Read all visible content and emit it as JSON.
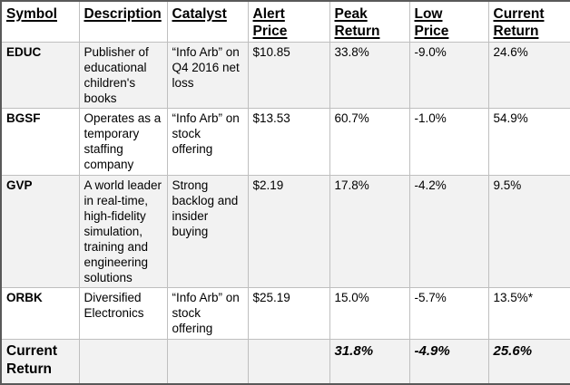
{
  "table": {
    "header": {
      "symbol": "Symbol",
      "description": "Description",
      "catalyst": "Catalyst",
      "alert_price": "Alert\nPrice",
      "peak_return": "Peak\nReturn",
      "low_price": "Low\nPrice",
      "current_return": "Current\nReturn"
    },
    "rows": [
      {
        "symbol": "EDUC",
        "description": "Publisher of educational children's books",
        "catalyst": "“Info Arb” on Q4 2016 net loss",
        "alert_price": "$10.85",
        "peak_return": "33.8%",
        "low_price": "-9.0%",
        "current_return": "24.6%"
      },
      {
        "symbol": "BGSF",
        "description": "Operates as a temporary staffing company",
        "catalyst": "“Info Arb” on stock offering",
        "alert_price": "$13.53",
        "peak_return": "60.7%",
        "low_price": "-1.0%",
        "current_return": "54.9%"
      },
      {
        "symbol": "GVP",
        "description": "A world leader in real-time, high-fidelity simulation, training and engineering solutions",
        "catalyst": "Strong backlog and insider buying",
        "alert_price": "$2.19",
        "peak_return": "17.8%",
        "low_price": "-4.2%",
        "current_return": "9.5%"
      },
      {
        "symbol": "ORBK",
        "description": "Diversified Electronics",
        "catalyst": "“Info Arb” on stock offering",
        "alert_price": "$25.19",
        "peak_return": "15.0%",
        "low_price": "-5.7%",
        "current_return": "13.5%*"
      }
    ],
    "footer": {
      "label": "Current\nReturn",
      "description": "",
      "catalyst": "",
      "alert_price": "",
      "peak_return": "31.8%",
      "low_price": "-4.9%",
      "current_return": "25.6%"
    }
  },
  "colors": {
    "row_shade": "#f2f2f2",
    "inner_border": "#bfbfbf",
    "outer_border": "#595959",
    "text": "#000000",
    "background": "#ffffff"
  }
}
